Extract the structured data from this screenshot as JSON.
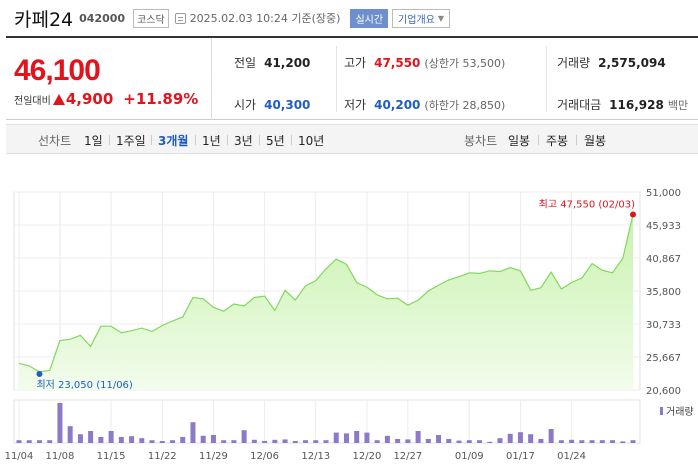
{
  "header": {
    "name": "카페24",
    "code": "042000",
    "market": "코스닥",
    "timestamp": "2025.02.03 10:24  기준(장중)",
    "realtime_label": "실시간",
    "company_label": "기업개요"
  },
  "summary": {
    "current_price": "46,100",
    "change_label": "전일대비",
    "change_value": "4,900",
    "change_rate": "+11.89%",
    "stats": {
      "prev_close": {
        "label": "전일",
        "value": "41,200"
      },
      "high": {
        "label": "고가",
        "value": "47,550",
        "sub": "(상한가 53,500)"
      },
      "volume": {
        "label": "거래량",
        "value": "2,575,094"
      },
      "open": {
        "label": "시가",
        "value": "40,300"
      },
      "low": {
        "label": "저가",
        "value": "40,200",
        "sub": "(하한가 28,850)"
      },
      "trade_amount": {
        "label": "거래대금",
        "value": "116,928",
        "unit": "백만"
      }
    }
  },
  "tabs": {
    "line_label": "선차트",
    "line_periods": [
      "1일",
      "1주일",
      "3개월",
      "1년",
      "3년",
      "5년",
      "10년"
    ],
    "active_period": "3개월",
    "candle_label": "봉차트",
    "candle_periods": [
      "일봉",
      "주봉",
      "월봉"
    ]
  },
  "colors": {
    "up": "#e2131b",
    "down": "#1f5dc4",
    "line": "#7fd85c",
    "volume": "#8d79c7"
  },
  "chart_data": {
    "type": "area",
    "price_ticks": [
      "51,000",
      "45,933",
      "40,867",
      "35,800",
      "30,733",
      "25,667",
      "20,600"
    ],
    "ylim": [
      20600,
      51000
    ],
    "x_labels": [
      "11/04",
      "11/08",
      "11/15",
      "11/22",
      "11/29",
      "12/06",
      "12/13",
      "12/20",
      "12/27",
      "01/09",
      "01/17",
      "01/24"
    ],
    "x_label_index": [
      0,
      4,
      9,
      14,
      19,
      24,
      29,
      34,
      38,
      44,
      49,
      54
    ],
    "prices": [
      24700,
      24300,
      23400,
      23600,
      28200,
      28400,
      29000,
      27300,
      30400,
      30400,
      29400,
      29700,
      30100,
      29600,
      30500,
      31200,
      31800,
      34800,
      34600,
      33300,
      32700,
      33800,
      33500,
      34800,
      35000,
      32800,
      35900,
      34400,
      36600,
      37400,
      39200,
      40700,
      39900,
      37100,
      36400,
      35200,
      34600,
      34700,
      33600,
      34400,
      35800,
      36700,
      37500,
      38000,
      38600,
      38500,
      38900,
      38800,
      39400,
      38900,
      35900,
      36300,
      38700,
      36100,
      37100,
      37800,
      40000,
      39000,
      38600,
      40800,
      47550
    ],
    "volumes": [
      0.07,
      0.07,
      0.07,
      0.07,
      1.0,
      0.42,
      0.22,
      0.3,
      0.15,
      0.3,
      0.15,
      0.17,
      0.12,
      0.07,
      0.05,
      0.07,
      0.15,
      0.52,
      0.18,
      0.2,
      0.07,
      0.07,
      0.32,
      0.08,
      0.05,
      0.08,
      0.09,
      0.05,
      0.07,
      0.07,
      0.07,
      0.26,
      0.24,
      0.3,
      0.26,
      0.07,
      0.18,
      0.1,
      0.09,
      0.3,
      0.1,
      0.2,
      0.1,
      0.06,
      0.07,
      0.07,
      0.03,
      0.12,
      0.23,
      0.27,
      0.22,
      0.1,
      0.35,
      0.07,
      0.08,
      0.07,
      0.07,
      0.07,
      0.07,
      0.04,
      0.07
    ],
    "volume_legend": "거래량",
    "high_annotation": "최고 47,550 (02/03)",
    "low_annotation": "최저 23,050 (11/06)",
    "high_index": 60,
    "high_value": 47550,
    "low_index": 2,
    "low_value": 23050
  }
}
